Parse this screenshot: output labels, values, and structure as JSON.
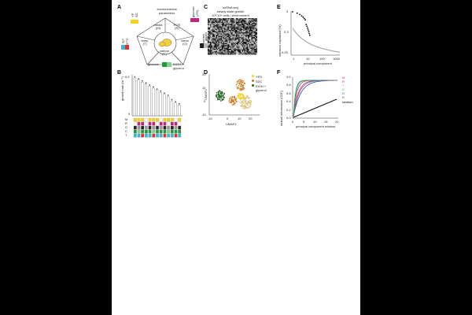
{
  "panels": {
    "A": {
      "label": "A",
      "title_lines": [
        "environmental",
        "parameters"
      ],
      "segments": [
        "media\n(M)",
        "ROS\n(R)",
        "osmo\n(O)",
        "carbon\n(C)",
        "temp\n(T)"
      ],
      "left_labels": [
        "YP",
        "SC"
      ],
      "left2_labels": [
        "30°",
        "37°C"
      ],
      "right_labels": [
        "glucose",
        "(2%)"
      ],
      "right2_labels": [
        "sorbitol",
        "(1M)"
      ],
      "bottom_left": "glucose",
      "bottom_right": "EtOH +",
      "bottom_right2": "glycerol"
    },
    "B": {
      "label": "B",
      "ylabel": "growth rate (hr⁻¹)",
      "ytick_labels": [
        "0.5",
        "0"
      ],
      "row_labels": [
        "M",
        "R",
        "O",
        "C",
        "T"
      ]
    },
    "C": {
      "label": "C",
      "title_lines": [
        "scRNA seq",
        "steady state growth",
        "10³-10⁴ cells / environment"
      ],
      "ylabel": "genes"
    },
    "D": {
      "label": "D",
      "xlabel": "UMAP1",
      "ylabel": "UMAP2",
      "xtick_labels": [
        "-10",
        "0",
        "10",
        "20"
      ],
      "ytick_labels": [
        "20",
        "10",
        "0",
        "-10"
      ],
      "legend": [
        "YPD",
        "SDC",
        "EtOH +",
        "glycerol"
      ]
    },
    "E": {
      "label": "E",
      "xlabel": "principal component",
      "ylabel": "variance explained (%)",
      "xtick_labels": [
        "1",
        "10",
        "100",
        "1000"
      ],
      "ytick_labels": [
        "3",
        "0.3",
        "0.03"
      ]
    },
    "F": {
      "label": "F",
      "xlabel": "principal component window",
      "ylabel": "mutual information (CDF)",
      "xtick_labels": [
        "0",
        "5",
        "10",
        "15",
        "20"
      ],
      "ytick_labels": [
        "1.0",
        "0.8",
        "0.6",
        "0.4",
        "0.2",
        "0.0"
      ],
      "legend": [
        "M",
        "R",
        "T",
        "C",
        "O",
        "R",
        "random"
      ]
    }
  },
  "colors": {
    "yellow": "#f2d21b",
    "magenta": "#c4247f",
    "cyan": "#37b9d6",
    "red": "#e03131",
    "green": "#1e9b3a",
    "blue": "#2c43c7",
    "darkgreen": "#1f5f1f",
    "orange": "#c77a1f"
  }
}
